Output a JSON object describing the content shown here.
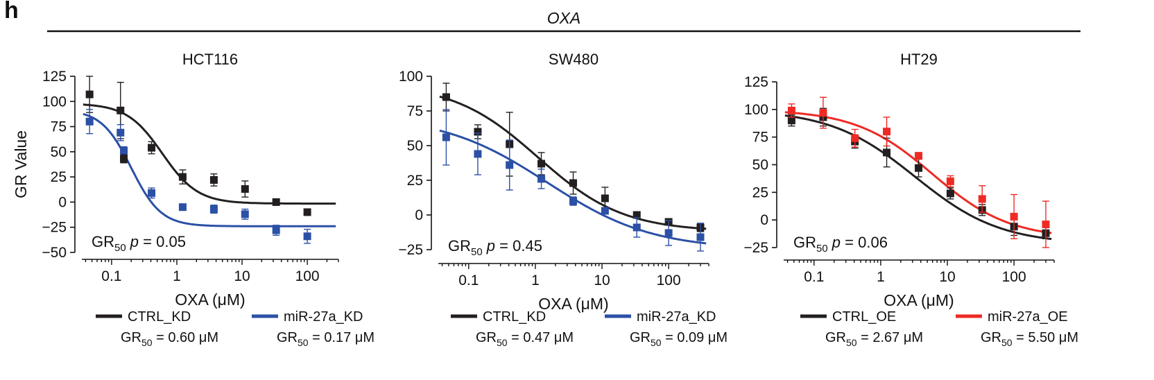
{
  "figure": {
    "panel_letter": "h",
    "drug_label": "OXA",
    "colors": {
      "black": "#231f20",
      "blue": "#2b50a5",
      "red": "#ee2a24"
    }
  },
  "chart_data": [
    {
      "type": "scatter",
      "title": "HCT116",
      "xlabel": "OXA (μM)",
      "ylabel": "GR Value",
      "xscale": "log",
      "xlim": [
        0.035,
        300
      ],
      "ylim": [
        -50,
        125
      ],
      "xticks": [
        0.1,
        1,
        10,
        100
      ],
      "xtick_labels": [
        "0.1",
        "1",
        "10",
        "100"
      ],
      "yticks": [
        -50,
        -25,
        0,
        25,
        50,
        75,
        100,
        125
      ],
      "ytick_labels": [
        "−50",
        "−25",
        "0",
        "25",
        "50",
        "75",
        "100",
        "125"
      ],
      "annotation": {
        "prefix": "GR",
        "sub": "50",
        "p": "p",
        "rest": " = 0.05"
      },
      "series": [
        {
          "name": "CTRL_KD",
          "gr50": "0.60 μM",
          "color": "#231f20",
          "x": [
            0.046,
            0.137,
            0.41,
            1.23,
            3.7,
            11.1,
            33.3,
            100
          ],
          "y": [
            107,
            91,
            54,
            25,
            22,
            13,
            0,
            -10
          ],
          "err": [
            18,
            28,
            6,
            7,
            6,
            8,
            3,
            3
          ],
          "curve": {
            "top": 98,
            "bottom": -1.5,
            "ec50": 0.6,
            "hill": 1.6
          }
        },
        {
          "name": "miR-27a_KD",
          "gr50": "0.17 μM",
          "color": "#2b50a5",
          "x": [
            0.046,
            0.137,
            0.154,
            0.41,
            1.23,
            3.7,
            11.1,
            33.3,
            100
          ],
          "y": [
            80,
            69,
            51,
            9,
            -5,
            -7,
            -12,
            -28,
            -34
          ],
          "err": [
            12,
            8,
            4,
            5,
            2,
            4,
            5,
            5,
            7
          ],
          "curve": {
            "top": 92,
            "bottom": -24,
            "ec50": 0.2,
            "hill": 1.9
          }
        },
        {
          "name": "",
          "color": "#231f20",
          "x": [
            0.154
          ],
          "y": [
            43
          ],
          "err": [
            4
          ]
        }
      ]
    },
    {
      "type": "scatter",
      "title": "SW480",
      "xlabel": "OXA (μM)",
      "ylabel": "",
      "xscale": "log",
      "xlim": [
        0.035,
        400
      ],
      "ylim": [
        -30,
        100
      ],
      "xticks": [
        0.1,
        1,
        10,
        100
      ],
      "xtick_labels": [
        "0.1",
        "1",
        "10",
        "100"
      ],
      "yticks": [
        -25,
        0,
        25,
        50,
        75,
        100
      ],
      "ytick_labels": [
        "−25",
        "0",
        "25",
        "50",
        "75",
        "100"
      ],
      "annotation": {
        "prefix": "GR",
        "sub": "50",
        "p": "p",
        "rest": " = 0.45"
      },
      "series": [
        {
          "name": "CTRL_KD",
          "gr50": "0.47 μM",
          "color": "#231f20",
          "x": [
            0.046,
            0.137,
            0.41,
            1.23,
            3.7,
            11.1,
            33.3,
            100,
            300
          ],
          "y": [
            85,
            60,
            51,
            37,
            23,
            12,
            0,
            -5,
            -9
          ],
          "err": [
            10,
            5,
            23,
            8,
            8,
            8,
            2,
            2,
            3
          ],
          "curve": {
            "top": 95,
            "bottom": -12,
            "ec50": 1.1,
            "hill": 0.68
          }
        },
        {
          "name": "miR-27a_KD",
          "gr50": "0.09 μM",
          "color": "#2b50a5",
          "x": [
            0.046,
            0.137,
            0.41,
            1.23,
            3.7,
            11.1,
            33.3,
            100,
            300
          ],
          "y": [
            56,
            44,
            36,
            26,
            10,
            3,
            -9,
            -13,
            -16
          ],
          "err": [
            20,
            15,
            18,
            7,
            3,
            2,
            7,
            9,
            10
          ],
          "curve": {
            "top": 72,
            "bottom": -25,
            "ec50": 1.5,
            "hill": 0.55
          }
        }
      ]
    },
    {
      "type": "scatter",
      "title": "HT29",
      "xlabel": "OXA (μM)",
      "ylabel": "",
      "xscale": "log",
      "xlim": [
        0.035,
        400
      ],
      "ylim": [
        -30,
        125
      ],
      "xticks": [
        0.1,
        1,
        10,
        100
      ],
      "xtick_labels": [
        "0.1",
        "1",
        "10",
        "100"
      ],
      "yticks": [
        -25,
        0,
        25,
        50,
        75,
        100,
        125
      ],
      "ytick_labels": [
        "−25",
        "0",
        "25",
        "50",
        "75",
        "100",
        "125"
      ],
      "annotation": {
        "prefix": "GR",
        "sub": "50",
        "p": "p",
        "rest": " = 0.06"
      },
      "series": [
        {
          "name": "CTRL_OE",
          "gr50": "2.67 μM",
          "color": "#231f20",
          "x": [
            0.046,
            0.137,
            0.41,
            1.23,
            3.7,
            11.1,
            33.3,
            100,
            300
          ],
          "y": [
            90,
            93,
            71,
            61,
            47,
            24,
            9,
            -6,
            -12
          ],
          "err": [
            5,
            8,
            6,
            13,
            8,
            5,
            5,
            8,
            5
          ],
          "curve": {
            "top": 100,
            "bottom": -22,
            "ec50": 3.3,
            "hill": 0.68
          }
        },
        {
          "name": "miR-27a_OE",
          "gr50": "5.50 μM",
          "color": "#ee2a24",
          "x": [
            0.046,
            0.137,
            0.41,
            1.23,
            3.7,
            11.1,
            33.3,
            100,
            300
          ],
          "y": [
            99,
            97,
            74,
            80,
            58,
            35,
            19,
            3,
            -4
          ],
          "err": [
            6,
            14,
            8,
            13,
            3,
            5,
            12,
            20,
            21
          ],
          "curve": {
            "top": 100,
            "bottom": -17,
            "ec50": 6.0,
            "hill": 0.75
          }
        }
      ]
    }
  ]
}
